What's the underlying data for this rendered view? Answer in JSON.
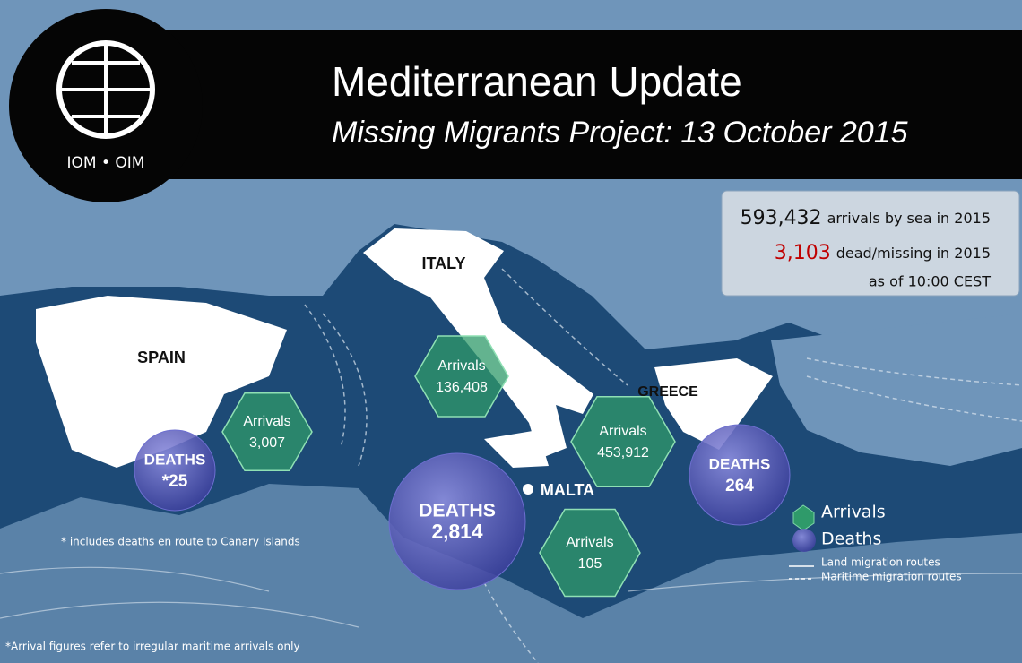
{
  "logo": {
    "text": "IOM • OIM"
  },
  "header": {
    "title": "Mediterranean Update",
    "subtitle": "Missing Migrants Project: 13 October 2015"
  },
  "summary": {
    "arrivals_value": "593,432",
    "arrivals_label": "arrivals by sea in 2015",
    "dead_value": "3,103",
    "dead_label": "dead/missing in 2015",
    "as_of": "as of 10:00 CEST"
  },
  "countries": [
    "ITALY",
    "SPAIN",
    "GREECE",
    "MALTA"
  ],
  "markers": [
    {
      "label": "Arrivals",
      "value": "3,007"
    },
    {
      "label": "DEATHS",
      "value": "*25"
    },
    {
      "label": "Arrivals",
      "value": "136,408"
    },
    {
      "label": "DEATHS",
      "value": "2,814"
    },
    {
      "label": "Arrivals",
      "value": "453,912"
    },
    {
      "label": "Arrivals",
      "value": "105"
    },
    {
      "label": "DEATHS",
      "value": "264"
    }
  ],
  "legend": {
    "arrivals": "Arrivals",
    "deaths": "Deaths",
    "land_routes": "Land migration  routes",
    "maritime_routes": "Maritime migration routes"
  },
  "notes": [
    "* includes deaths en route to Canary Islands",
    "*Arrival figures refer to irregular maritime arrivals only"
  ]
}
